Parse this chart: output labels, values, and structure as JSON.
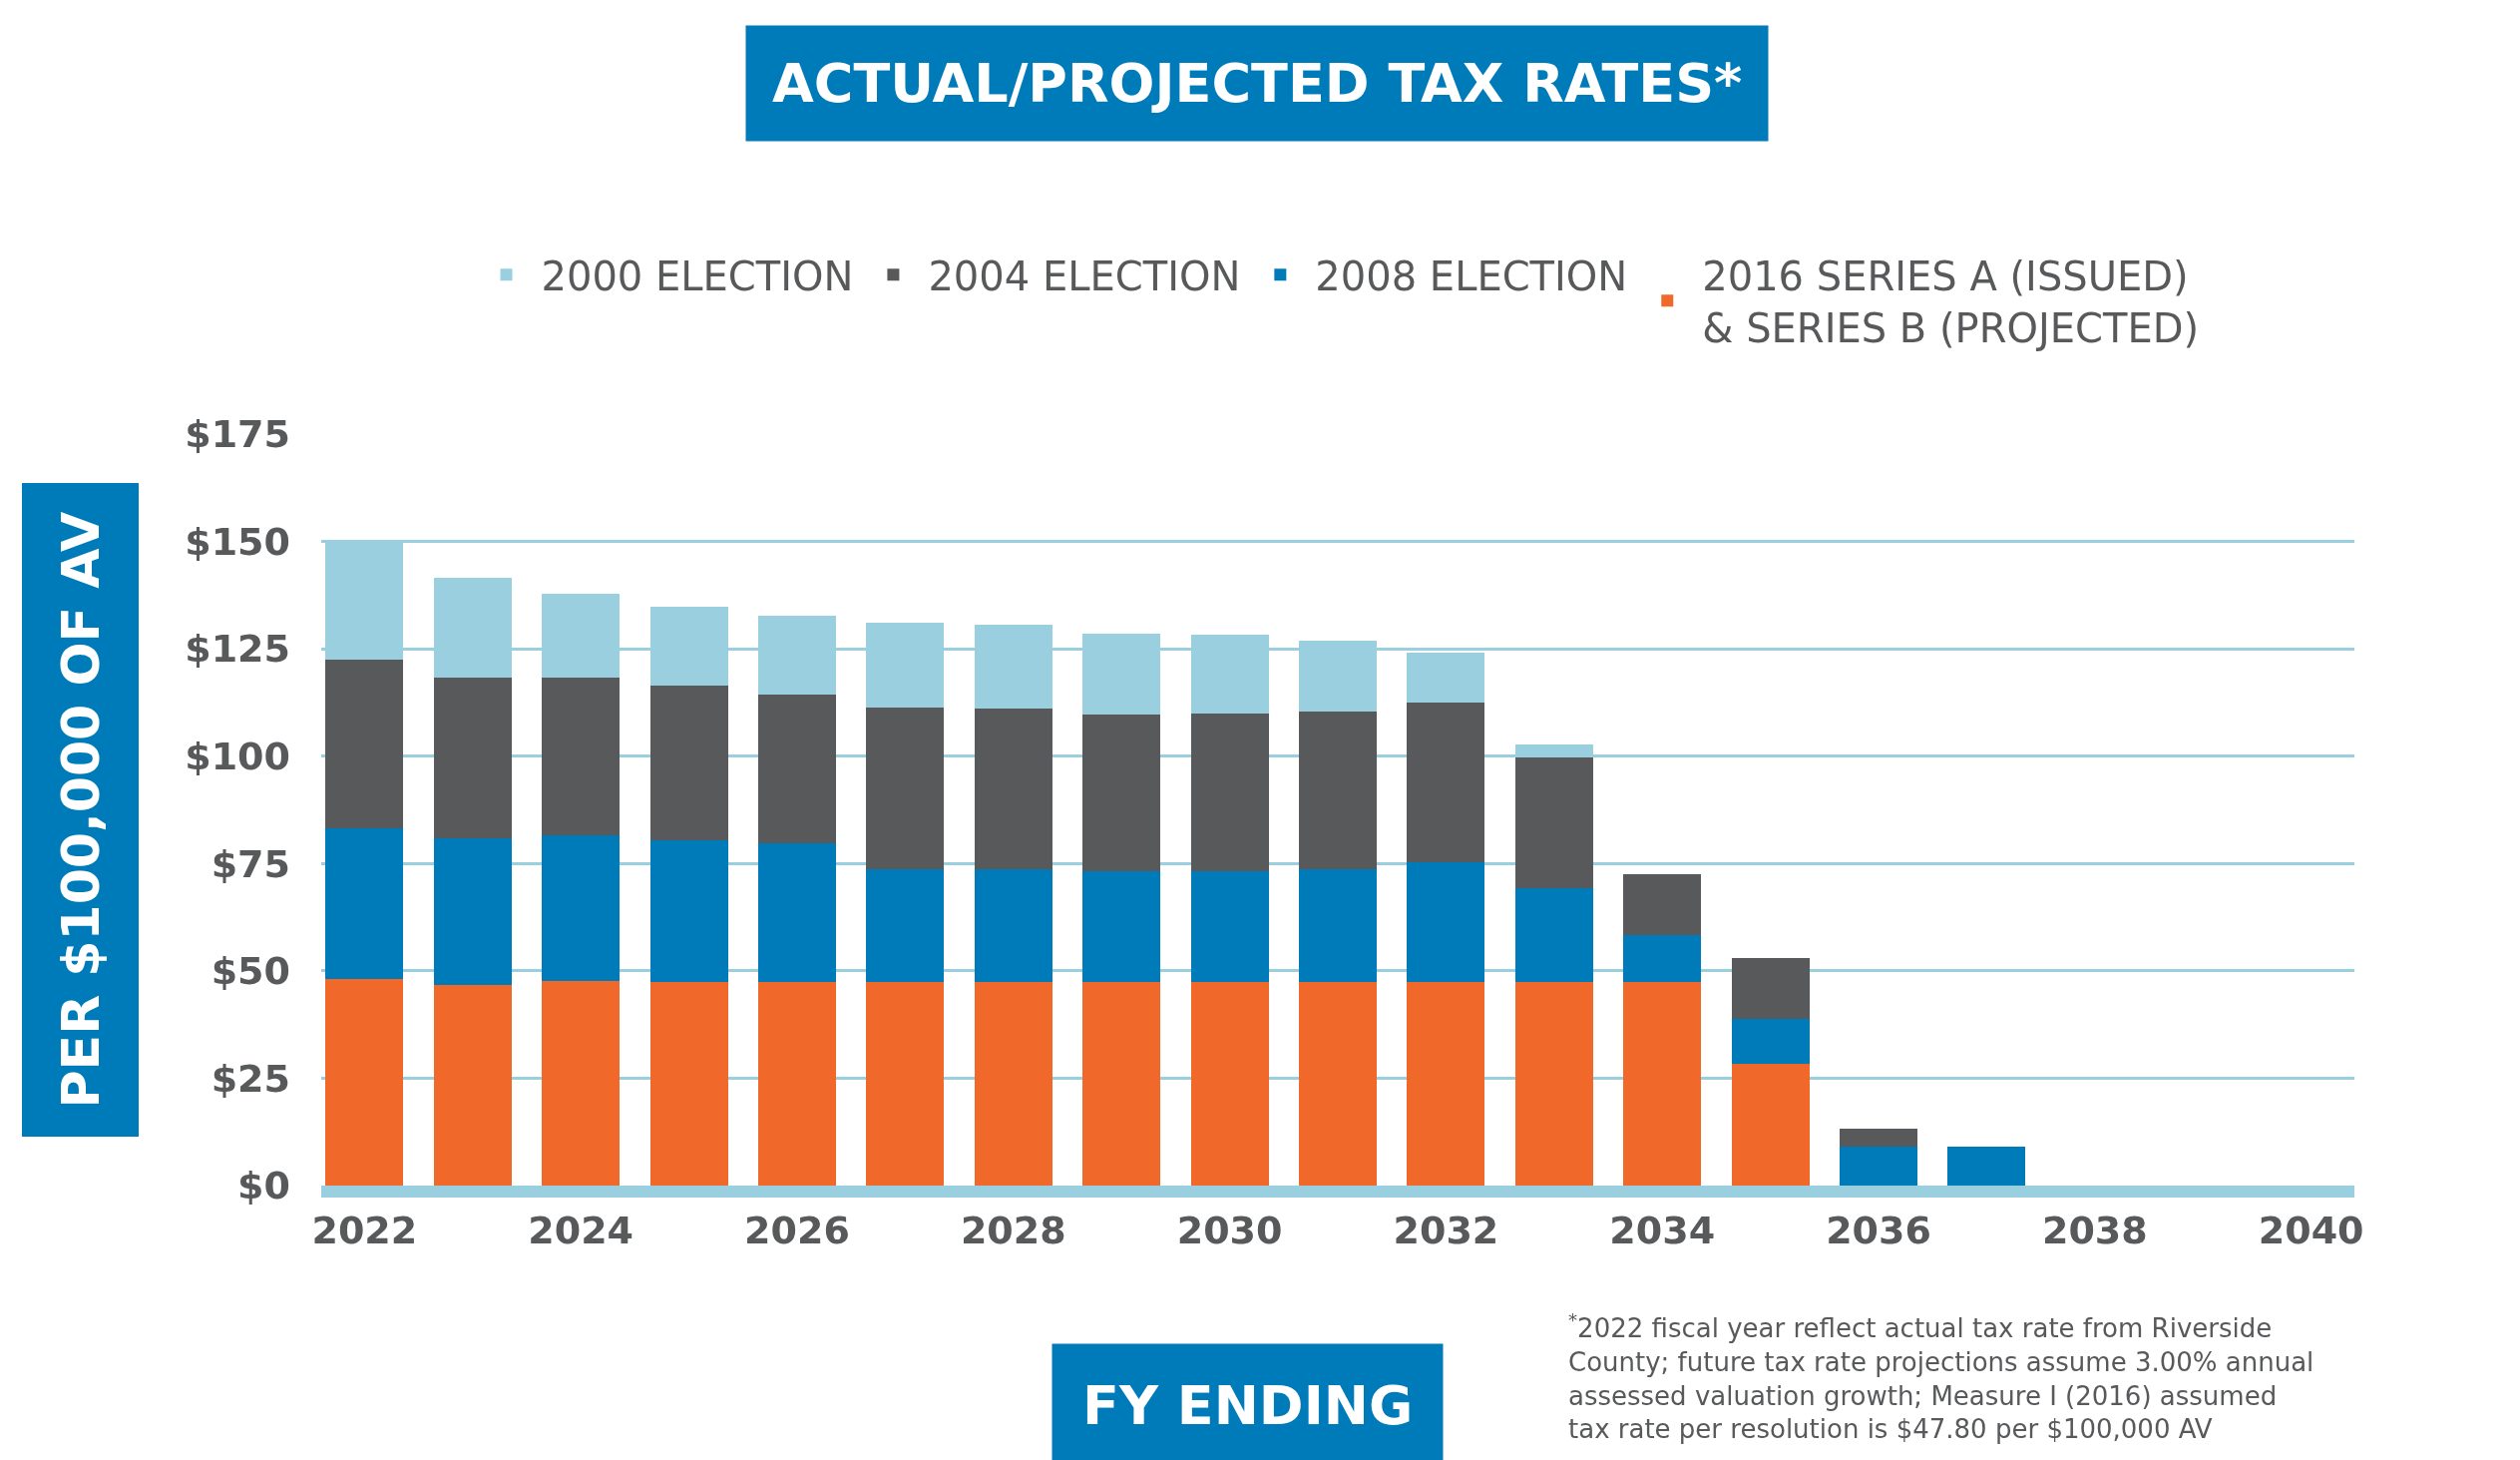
{
  "chart_data": {
    "type": "bar",
    "stacked": true,
    "title": "ACTUAL/PROJECTED TAX RATES*",
    "xlabel": "FY ENDING",
    "ylabel": "PER $100,000 OF AV",
    "x": [
      2022,
      2023,
      2024,
      2025,
      2026,
      2027,
      2028,
      2029,
      2030,
      2031,
      2032,
      2033,
      2034,
      2035,
      2036,
      2037
    ],
    "series": [
      {
        "name": "2016 SERIES A (ISSUED)\n& SERIES B (PROJECTED)",
        "color": "#f1682b",
        "values": [
          48.2,
          46.8,
          47.7,
          47.3,
          47.3,
          47.3,
          47.3,
          47.3,
          47.3,
          47.3,
          47.3,
          47.3,
          47.3,
          28.3,
          null,
          null
        ]
      },
      {
        "name": "2008 ELECTION",
        "color": "#007bba",
        "values": [
          35.1,
          34.0,
          33.8,
          33.0,
          32.4,
          26.4,
          26.4,
          26.0,
          26.0,
          26.4,
          27.9,
          21.9,
          11.0,
          10.6,
          9.1,
          9.1
        ]
      },
      {
        "name": "2004 ELECTION",
        "color": "#58595b",
        "values": [
          39.2,
          37.5,
          36.8,
          36.2,
          34.6,
          37.7,
          37.3,
          36.5,
          36.6,
          36.8,
          37.4,
          30.6,
          14.2,
          14.2,
          4.2,
          null
        ]
      },
      {
        "name": "2000 ELECTION",
        "color": "#9acfdf",
        "values": [
          27.5,
          23.2,
          19.6,
          18.3,
          18.4,
          19.6,
          19.6,
          18.8,
          18.4,
          16.3,
          11.5,
          3.0,
          null,
          null,
          null,
          null
        ]
      }
    ],
    "xlim": [
      2021.6,
      2040.4
    ],
    "xticks": [
      2022,
      2024,
      2026,
      2028,
      2030,
      2032,
      2034,
      2036,
      2038,
      2040
    ],
    "ylim": [
      0,
      175
    ],
    "yticks": [
      {
        "value": 0,
        "label": "$0"
      },
      {
        "value": 25,
        "label": "$25"
      },
      {
        "value": 50,
        "label": "$50"
      },
      {
        "value": 75,
        "label": "$75"
      },
      {
        "value": 100,
        "label": "$100"
      },
      {
        "value": 125,
        "label": "$125"
      },
      {
        "value": 150,
        "label": "$150"
      },
      {
        "value": 175,
        "label": "$175"
      }
    ],
    "grid": "y",
    "legend": "top",
    "annotations": [
      "$^{*}$2022 fiscal year reflect actual tax rate from Riverside\nCounty; future tax rate projections assume 3.00% annual\nassessed valuation growth; Measure I (2016) assumed\ntax rate per resolution is $47.80 per $100,000 AV"
    ]
  }
}
